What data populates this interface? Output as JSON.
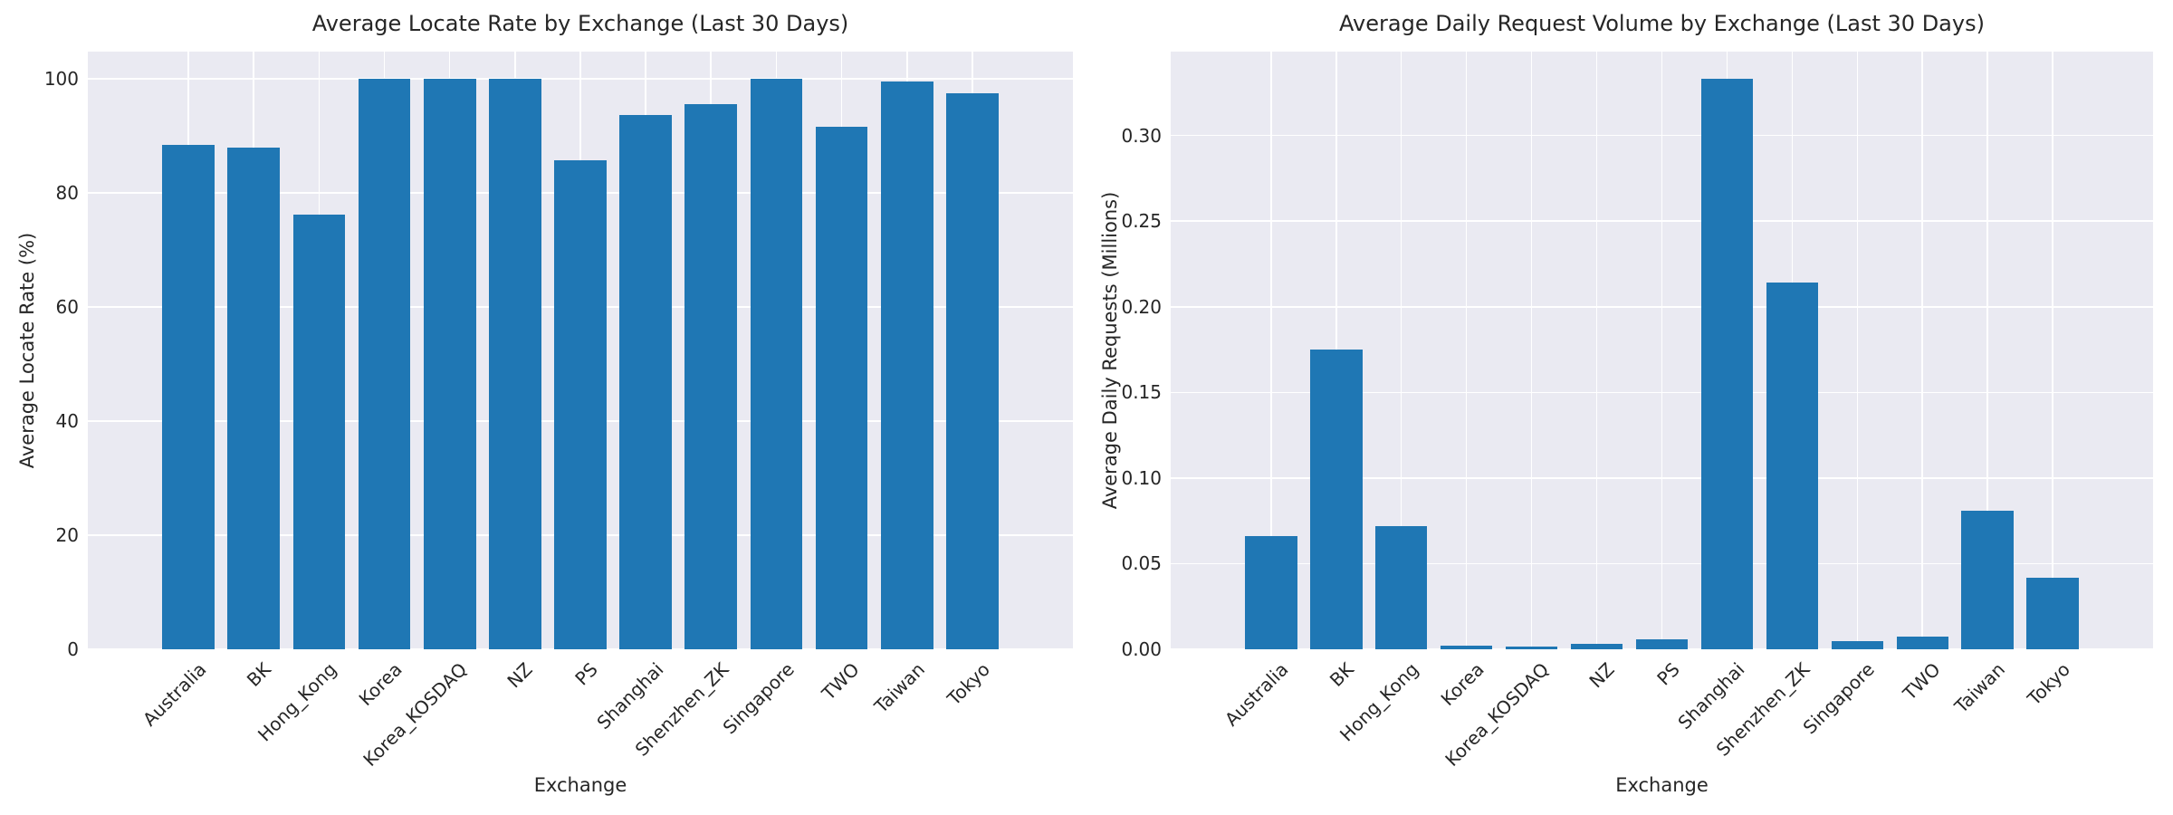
{
  "figure_background": "#ffffff",
  "colors": {
    "bar": "#1f77b4",
    "plot_background": "#eaeaf2",
    "gridline": "#ffffff",
    "text": "#262626"
  },
  "chart_data": [
    {
      "type": "bar",
      "title": "Average Locate Rate by Exchange (Last 30 Days)",
      "xlabel": "Exchange",
      "ylabel": "Average Locate Rate (%)",
      "legend": "none",
      "grid": "on",
      "categories": [
        "Australia",
        "BK",
        "Hong_Kong",
        "Korea",
        "Korea_KOSDAQ",
        "NZ",
        "PS",
        "Shanghai",
        "Shenzhen_ZK",
        "Singapore",
        "TWO",
        "Taiwan",
        "Tokyo"
      ],
      "values": [
        88.4,
        87.9,
        76.2,
        100,
        100,
        100,
        85.7,
        93.7,
        95.6,
        100,
        91.6,
        99.5,
        97.5
      ],
      "ylim": [
        0,
        104.8
      ],
      "ytick_values": [
        0,
        20,
        40,
        60,
        80,
        100
      ],
      "ytick_labels": [
        "0",
        "20",
        "40",
        "60",
        "80",
        "100"
      ]
    },
    {
      "type": "bar",
      "title": "Average Daily Request Volume by Exchange (Last 30 Days)",
      "xlabel": "Exchange",
      "ylabel": "Average Daily Requests (Millions)",
      "legend": "none",
      "grid": "on",
      "categories": [
        "Australia",
        "BK",
        "Hong_Kong",
        "Korea",
        "Korea_KOSDAQ",
        "NZ",
        "PS",
        "Shanghai",
        "Shenzhen_ZK",
        "Singapore",
        "TWO",
        "Taiwan",
        "Tokyo"
      ],
      "values": [
        0.066,
        0.175,
        0.072,
        0.002,
        0.0015,
        0.003,
        0.006,
        0.333,
        0.214,
        0.005,
        0.0075,
        0.081,
        0.042
      ],
      "ylim": [
        0,
        0.349
      ],
      "ytick_values": [
        0,
        0.05,
        0.1,
        0.15,
        0.2,
        0.25,
        0.3
      ],
      "ytick_labels": [
        "0.00",
        "0.05",
        "0.10",
        "0.15",
        "0.20",
        "0.25",
        "0.30"
      ]
    }
  ]
}
